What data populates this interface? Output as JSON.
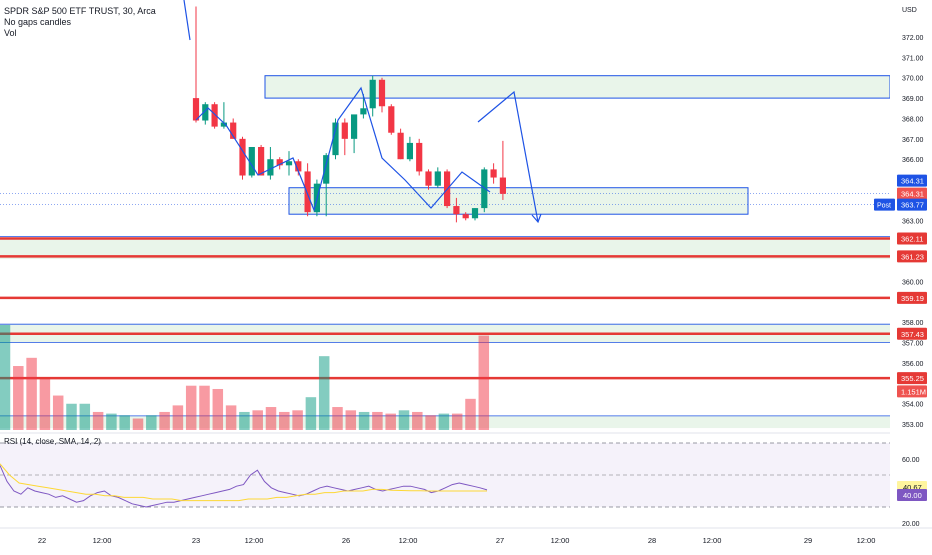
{
  "legend": {
    "symbol": "SPDR S&P 500 ETF TRUST, 30, Arca",
    "line2": "No gaps candles",
    "line3": "Vol"
  },
  "rsi_legend": "RSI (14, close, SMA, 14, 2)",
  "price_axis": {
    "currency": "USD",
    "ticks": [
      "372.00",
      "371.00",
      "370.00",
      "369.00",
      "368.00",
      "367.00",
      "366.00",
      "363.00",
      "360.00",
      "358.00",
      "357.00",
      "356.00",
      "354.00",
      "353.00"
    ],
    "labels": [
      {
        "text": "364.31",
        "bg": "#1e53e5",
        "color": "#ffffff"
      },
      {
        "text": "364.31",
        "bg": "#ef5350",
        "color": "#ffffff"
      },
      {
        "text": "363.77",
        "bg": "#1e53e5",
        "color": "#ffffff",
        "tag": "Post"
      },
      {
        "text": "362.11",
        "bg": "#e53935",
        "color": "#ffffff"
      },
      {
        "text": "361.23",
        "bg": "#e53935",
        "color": "#ffffff"
      },
      {
        "text": "359.19",
        "bg": "#e53935",
        "color": "#ffffff"
      },
      {
        "text": "357.43",
        "bg": "#e53935",
        "color": "#ffffff"
      },
      {
        "text": "355.25",
        "bg": "#e53935",
        "color": "#ffffff"
      },
      {
        "text": "1.151M",
        "bg": "#ef5350",
        "color": "#ffffff"
      }
    ]
  },
  "rsi_axis": {
    "ticks": [
      "60.00",
      "20.00"
    ],
    "labels": [
      {
        "text": "40.67",
        "bg": "#fff59d",
        "color": "#131722"
      },
      {
        "text": "40.00",
        "bg": "#7e57c2",
        "color": "#ffffff"
      }
    ]
  },
  "time_axis": [
    "22",
    "12:00",
    "23",
    "12:00",
    "26",
    "12:00",
    "27",
    "12:00",
    "28",
    "12:00",
    "29",
    "12:00"
  ],
  "chart_data": {
    "type": "candlestick",
    "up_color": "#089981",
    "down_color": "#f23645",
    "candles": [
      {
        "o": 369.0,
        "h": 373.5,
        "l": 367.8,
        "c": 367.9
      },
      {
        "o": 367.9,
        "h": 368.8,
        "l": 367.7,
        "c": 368.7
      },
      {
        "o": 368.7,
        "h": 368.8,
        "l": 367.5,
        "c": 367.6
      },
      {
        "o": 367.6,
        "h": 368.8,
        "l": 367.5,
        "c": 367.8
      },
      {
        "o": 367.8,
        "h": 368.0,
        "l": 367.0,
        "c": 367.0
      },
      {
        "o": 367.0,
        "h": 367.1,
        "l": 365.0,
        "c": 365.2
      },
      {
        "o": 365.2,
        "h": 366.6,
        "l": 365.1,
        "c": 366.6
      },
      {
        "o": 366.6,
        "h": 366.7,
        "l": 365.2,
        "c": 365.2
      },
      {
        "o": 365.2,
        "h": 366.6,
        "l": 365.0,
        "c": 366.0
      },
      {
        "o": 366.0,
        "h": 366.1,
        "l": 365.5,
        "c": 365.7
      },
      {
        "o": 365.7,
        "h": 366.4,
        "l": 365.2,
        "c": 365.9
      },
      {
        "o": 365.9,
        "h": 366.0,
        "l": 365.2,
        "c": 365.4
      },
      {
        "o": 365.4,
        "h": 365.8,
        "l": 363.2,
        "c": 363.4
      },
      {
        "o": 363.4,
        "h": 365.0,
        "l": 363.2,
        "c": 364.8
      },
      {
        "o": 364.8,
        "h": 366.3,
        "l": 363.2,
        "c": 366.2
      },
      {
        "o": 366.2,
        "h": 368.0,
        "l": 366.0,
        "c": 367.8
      },
      {
        "o": 367.8,
        "h": 368.0,
        "l": 366.2,
        "c": 367.0
      },
      {
        "o": 367.0,
        "h": 368.0,
        "l": 366.3,
        "c": 368.2
      },
      {
        "o": 368.2,
        "h": 369.2,
        "l": 368.0,
        "c": 368.5
      },
      {
        "o": 368.5,
        "h": 370.1,
        "l": 368.1,
        "c": 369.9
      },
      {
        "o": 369.9,
        "h": 370.0,
        "l": 368.3,
        "c": 368.6
      },
      {
        "o": 368.6,
        "h": 368.7,
        "l": 367.2,
        "c": 367.3
      },
      {
        "o": 367.3,
        "h": 367.5,
        "l": 366.0,
        "c": 366.0
      },
      {
        "o": 366.0,
        "h": 367.1,
        "l": 365.9,
        "c": 366.8
      },
      {
        "o": 366.8,
        "h": 367.0,
        "l": 365.2,
        "c": 365.4
      },
      {
        "o": 365.4,
        "h": 365.5,
        "l": 364.5,
        "c": 364.7
      },
      {
        "o": 364.7,
        "h": 365.6,
        "l": 364.6,
        "c": 365.4
      },
      {
        "o": 365.4,
        "h": 365.5,
        "l": 363.6,
        "c": 363.7
      },
      {
        "o": 363.7,
        "h": 364.1,
        "l": 362.9,
        "c": 363.3
      },
      {
        "o": 363.3,
        "h": 363.4,
        "l": 363.0,
        "c": 363.1
      },
      {
        "o": 363.1,
        "h": 363.6,
        "l": 363.0,
        "c": 363.6
      },
      {
        "o": 363.6,
        "h": 365.6,
        "l": 363.4,
        "c": 365.5
      },
      {
        "o": 365.5,
        "h": 365.8,
        "l": 364.8,
        "c": 365.1
      },
      {
        "o": 365.1,
        "h": 366.9,
        "l": 364.0,
        "c": 364.3
      }
    ],
    "volume": [
      {
        "v": 1.28,
        "up": true
      },
      {
        "v": 0.78,
        "up": false
      },
      {
        "v": 0.88,
        "up": false
      },
      {
        "v": 0.62,
        "up": false
      },
      {
        "v": 0.42,
        "up": false
      },
      {
        "v": 0.32,
        "up": true
      },
      {
        "v": 0.32,
        "up": true
      },
      {
        "v": 0.22,
        "up": false
      },
      {
        "v": 0.2,
        "up": true
      },
      {
        "v": 0.18,
        "up": true
      },
      {
        "v": 0.14,
        "up": false
      },
      {
        "v": 0.18,
        "up": true
      },
      {
        "v": 0.22,
        "up": false
      },
      {
        "v": 0.3,
        "up": false
      },
      {
        "v": 0.54,
        "up": false
      },
      {
        "v": 0.54,
        "up": false
      },
      {
        "v": 0.5,
        "up": false
      },
      {
        "v": 0.3,
        "up": false
      },
      {
        "v": 0.22,
        "up": true
      },
      {
        "v": 0.24,
        "up": false
      },
      {
        "v": 0.28,
        "up": false
      },
      {
        "v": 0.22,
        "up": false
      },
      {
        "v": 0.24,
        "up": false
      },
      {
        "v": 0.4,
        "up": true
      },
      {
        "v": 0.9,
        "up": true
      },
      {
        "v": 0.28,
        "up": false
      },
      {
        "v": 0.24,
        "up": false
      },
      {
        "v": 0.22,
        "up": true
      },
      {
        "v": 0.22,
        "up": false
      },
      {
        "v": 0.2,
        "up": false
      },
      {
        "v": 0.24,
        "up": true
      },
      {
        "v": 0.22,
        "up": false
      },
      {
        "v": 0.18,
        "up": false
      },
      {
        "v": 0.2,
        "up": true
      },
      {
        "v": 0.2,
        "up": false
      },
      {
        "v": 0.38,
        "up": false
      },
      {
        "v": 1.151,
        "up": false
      }
    ],
    "rsi": [
      56,
      46,
      40,
      38,
      42,
      40,
      39,
      38,
      36,
      37,
      35,
      33,
      34,
      37,
      39,
      40,
      37,
      36,
      34,
      32,
      31,
      30,
      31,
      32,
      33,
      33,
      34,
      35,
      36,
      37,
      38,
      39,
      40,
      41,
      43,
      44,
      50,
      53,
      46,
      42,
      40,
      39,
      38,
      37,
      38,
      40,
      42,
      43,
      42,
      41,
      40,
      41,
      42,
      43,
      41,
      40,
      41,
      42,
      43,
      43,
      42,
      41,
      39,
      40,
      42,
      44,
      45,
      44,
      43,
      42,
      40.67
    ],
    "rsi_ma": [
      57,
      50,
      45,
      44,
      43,
      42,
      41,
      40,
      39,
      38,
      38,
      37,
      37,
      36,
      36,
      36,
      35,
      35,
      35,
      34,
      34,
      34,
      34,
      34,
      34,
      34,
      35,
      35,
      35,
      36,
      36,
      37,
      38,
      38,
      39,
      39,
      40,
      40,
      40,
      41,
      41,
      40.5,
      40.3,
      40.2,
      40.1,
      40.0,
      40.0,
      40.0,
      40.0,
      40.0,
      40.0,
      40.0
    ],
    "horizontal_levels": [
      362.11,
      361.23,
      359.19,
      357.43,
      355.25
    ],
    "zones": [
      {
        "top": 370.1,
        "bottom": 369.0,
        "label": ""
      },
      {
        "top": 364.6,
        "bottom": 363.3,
        "label": ""
      }
    ],
    "projection": [
      {
        "x": 0,
        "y": 367.8
      },
      {
        "x": 1,
        "y": 369.2
      },
      {
        "x": 2,
        "y": 363.1
      }
    ],
    "ylim": [
      352.8,
      373.5
    ]
  }
}
